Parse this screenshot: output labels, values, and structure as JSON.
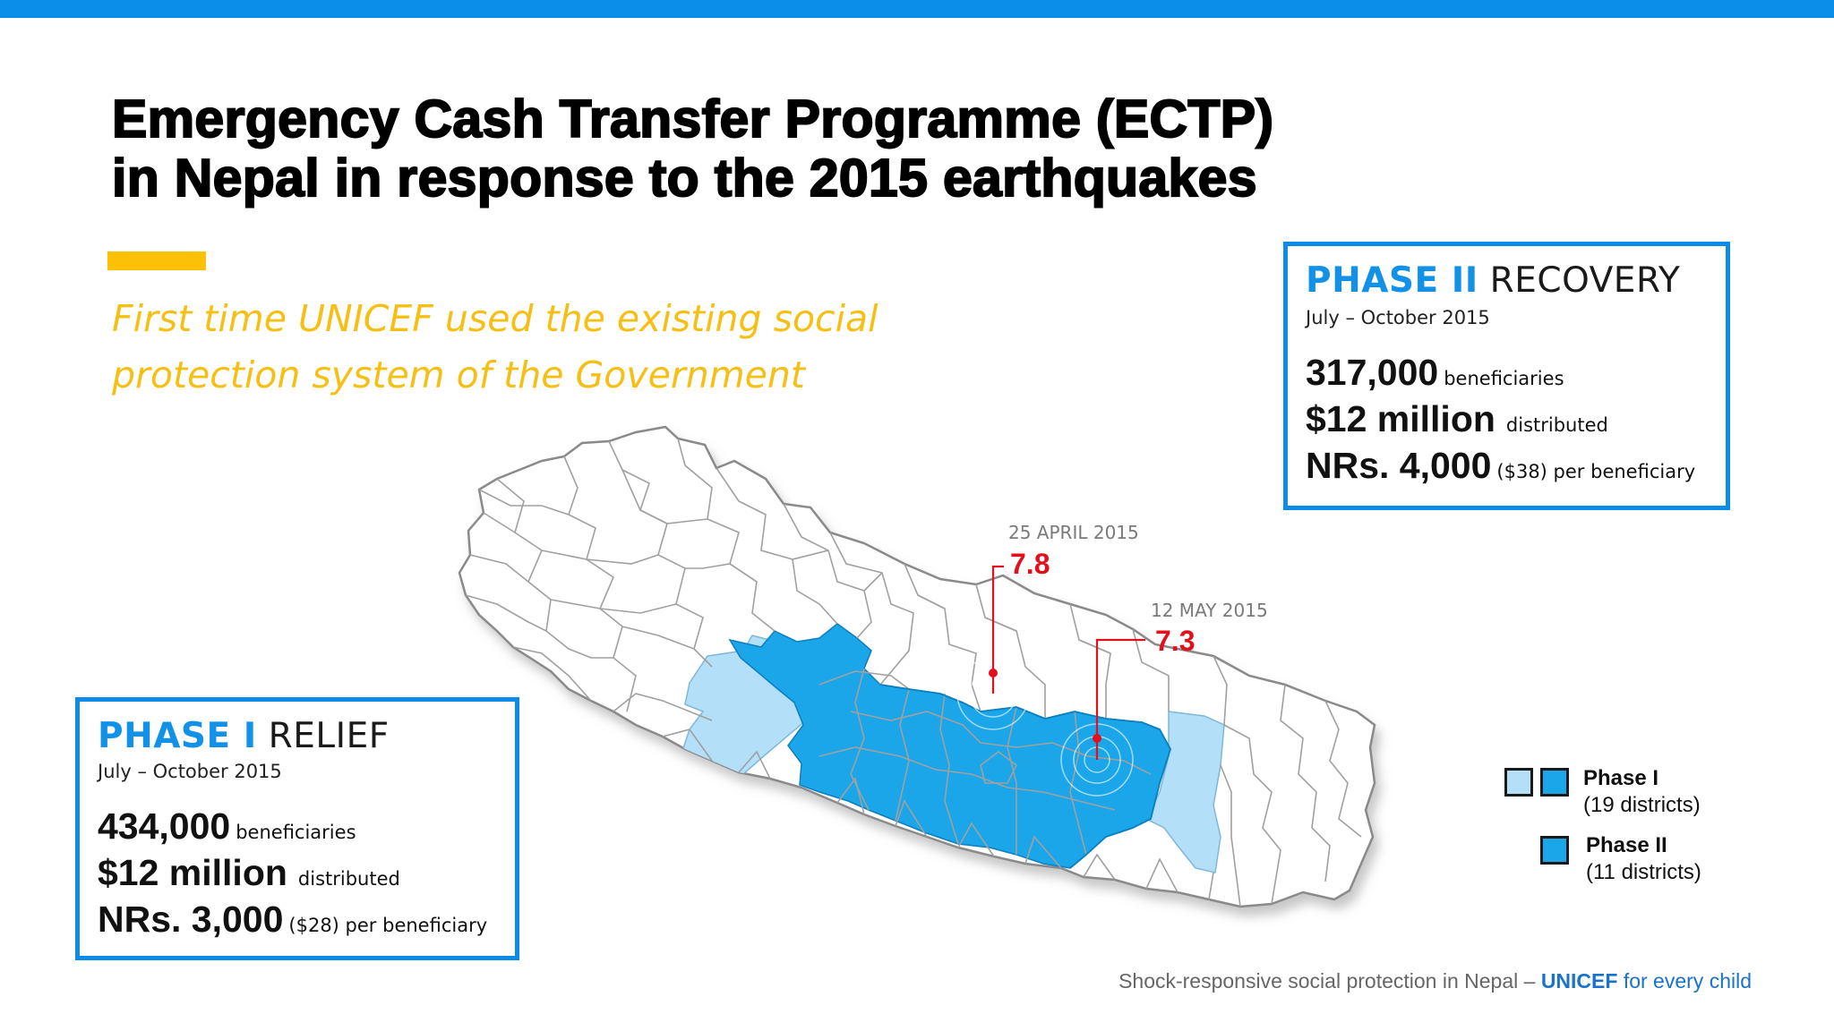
{
  "title": {
    "line1": "Emergency Cash Transfer Programme (ECTP)",
    "line2": "in Nepal in response to the 2015 earthquakes"
  },
  "subtitle": {
    "line1": "First time UNICEF used the existing social",
    "line2": "protection system of the Government"
  },
  "colors": {
    "accent_blue": "#0b8ee8",
    "accent_yellow": "#fcc006",
    "phase1_light": "#b3dff8",
    "phase_dark": "#1aa6e8",
    "quake_red": "#e3101c"
  },
  "phase2": {
    "label_highlight": "PHASE II",
    "label_rest": " RECOVERY",
    "dates": "July – October 2015",
    "beneficiaries_value": "317,000",
    "beneficiaries_label": "beneficiaries",
    "amount_value": "$12 million",
    "amount_label": "distributed",
    "per_value": "NRs. 4,000",
    "per_label": "($38) per beneficiary"
  },
  "phase1": {
    "label_highlight": "PHASE I",
    "label_rest": " RELIEF",
    "dates": "July – October 2015",
    "beneficiaries_value": "434,000",
    "beneficiaries_label": "beneficiaries",
    "amount_value": "$12 million",
    "amount_label": "distributed",
    "per_value": "NRs. 3,000",
    "per_label": "($28) per beneficiary"
  },
  "earthquakes": [
    {
      "date": "25 APRIL 2015",
      "magnitude": "7.8"
    },
    {
      "date": "12 MAY 2015",
      "magnitude": "7.3"
    }
  ],
  "legend": {
    "phase1_label": "Phase I",
    "phase1_detail": "(19 districts)",
    "phase2_label": "Phase II",
    "phase2_detail": "(11 districts)"
  },
  "footer": {
    "text": "Shock-responsive social protection in Nepal – ",
    "brand": "UNICEF",
    "tagline": " for every child"
  }
}
